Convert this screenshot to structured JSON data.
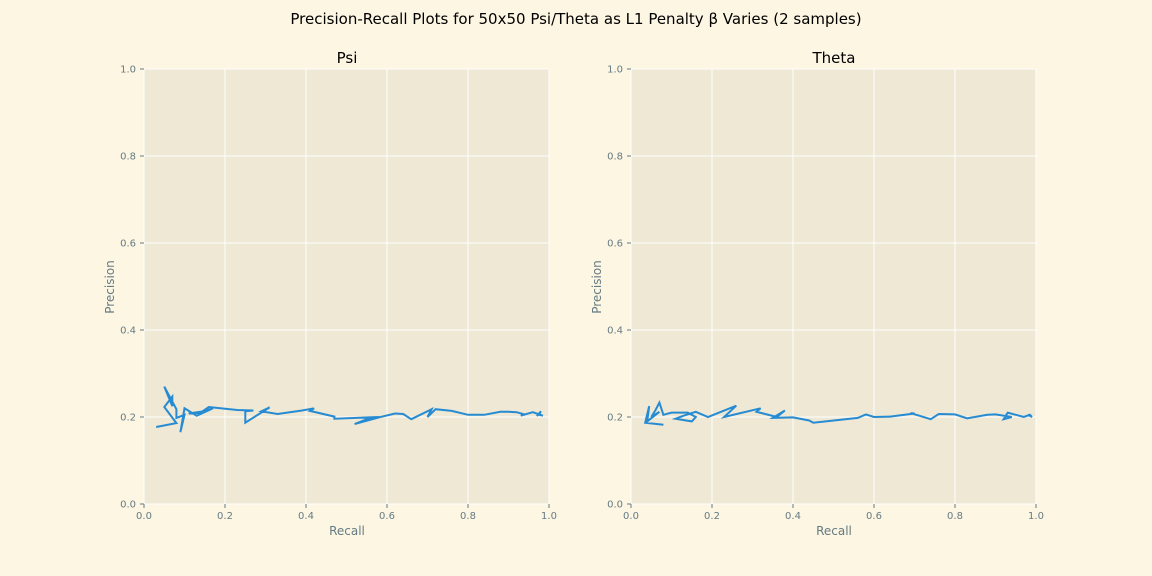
{
  "figure": {
    "title": "Precision-Recall Plots for 50x50 Psi/Theta as L1 Penalty β Varies (2 samples)"
  },
  "colors": {
    "figure_background": "#fdf6e3",
    "axes_background": "#eee8d5",
    "grid": "#ffffff",
    "line": "#268bd2",
    "label_text": "#657b83"
  },
  "chart_data": [
    {
      "type": "line",
      "title": "Psi",
      "xlabel": "Recall",
      "ylabel": "Precision",
      "xlim": [
        0,
        1
      ],
      "ylim": [
        0,
        1
      ],
      "xticks": [
        "0.0",
        "0.2",
        "0.4",
        "0.6",
        "0.8",
        "1.0"
      ],
      "yticks": [
        "0.0",
        "0.2",
        "0.4",
        "0.6",
        "0.8",
        "1.0"
      ],
      "grid": true,
      "series": [
        {
          "x": [
            0.97,
            0.98,
            0.975,
            0.985,
            0.96,
            0.93,
            0.94,
            0.92,
            0.9,
            0.88,
            0.84,
            0.8,
            0.76,
            0.72,
            0.7,
            0.71,
            0.66,
            0.64,
            0.62,
            0.58,
            0.52,
            0.55,
            0.58,
            0.47,
            0.47,
            0.41,
            0.42,
            0.39,
            0.33,
            0.29,
            0.31,
            0.25,
            0.25,
            0.27,
            0.23,
            0.16,
            0.14,
            0.11,
            0.14,
            0.17,
            0.13,
            0.1,
            0.09,
            0.1,
            0.08,
            0.08,
            0.05,
            0.07,
            0.07,
            0.05,
            0.08,
            0.03
          ],
          "y": [
            0.202,
            0.213,
            0.205,
            0.203,
            0.211,
            0.203,
            0.206,
            0.211,
            0.212,
            0.212,
            0.205,
            0.205,
            0.214,
            0.218,
            0.2,
            0.218,
            0.195,
            0.207,
            0.208,
            0.199,
            0.184,
            0.195,
            0.2,
            0.196,
            0.201,
            0.214,
            0.22,
            0.215,
            0.207,
            0.213,
            0.222,
            0.187,
            0.213,
            0.215,
            0.216,
            0.223,
            0.21,
            0.208,
            0.212,
            0.22,
            0.203,
            0.22,
            0.165,
            0.205,
            0.198,
            0.218,
            0.27,
            0.225,
            0.247,
            0.223,
            0.186,
            0.177
          ]
        }
      ]
    },
    {
      "type": "line",
      "title": "Theta",
      "xlabel": "Recall",
      "ylabel": "Precision",
      "xlim": [
        0,
        1
      ],
      "ylim": [
        0,
        1
      ],
      "xticks": [
        "0.0",
        "0.2",
        "0.4",
        "0.6",
        "0.8",
        "1.0"
      ],
      "yticks": [
        "0.0",
        "0.2",
        "0.4",
        "0.6",
        "0.8",
        "1.0"
      ],
      "grid": true,
      "series": [
        {
          "x": [
            0.98,
            0.99,
            0.985,
            0.97,
            0.95,
            0.93,
            0.92,
            0.94,
            0.9,
            0.88,
            0.83,
            0.8,
            0.76,
            0.74,
            0.69,
            0.7,
            0.64,
            0.6,
            0.58,
            0.56,
            0.45,
            0.44,
            0.4,
            0.35,
            0.38,
            0.36,
            0.31,
            0.32,
            0.23,
            0.26,
            0.19,
            0.16,
            0.13,
            0.11,
            0.15,
            0.16,
            0.14,
            0.1,
            0.08,
            0.07,
            0.06,
            0.05,
            0.07,
            0.04,
            0.045,
            0.035,
            0.08
          ],
          "y": [
            0.205,
            0.2,
            0.205,
            0.2,
            0.205,
            0.21,
            0.195,
            0.2,
            0.206,
            0.205,
            0.197,
            0.206,
            0.207,
            0.195,
            0.209,
            0.208,
            0.201,
            0.2,
            0.206,
            0.198,
            0.187,
            0.192,
            0.199,
            0.198,
            0.215,
            0.2,
            0.212,
            0.22,
            0.2,
            0.226,
            0.2,
            0.212,
            0.203,
            0.196,
            0.19,
            0.2,
            0.21,
            0.21,
            0.205,
            0.233,
            0.215,
            0.2,
            0.212,
            0.19,
            0.225,
            0.187,
            0.182
          ]
        }
      ]
    }
  ]
}
